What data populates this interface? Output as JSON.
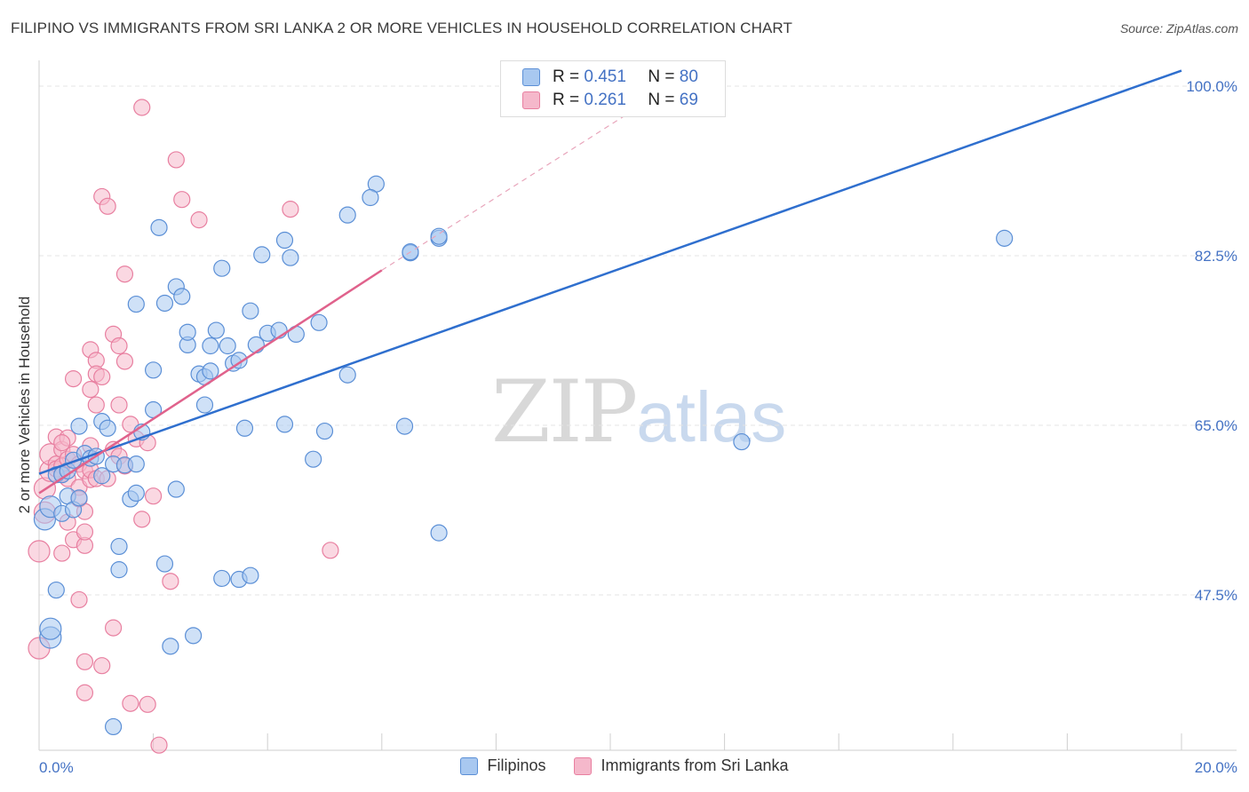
{
  "title": "FILIPINO VS IMMIGRANTS FROM SRI LANKA 2 OR MORE VEHICLES IN HOUSEHOLD CORRELATION CHART",
  "source": "Source: ZipAtlas.com",
  "watermark": {
    "zip": "ZIP",
    "atlas": "atlas"
  },
  "legend": {
    "rows": [
      {
        "r_label": "R =",
        "r_value": "0.451",
        "n_label": "N =",
        "n_value": "80",
        "color": "#a8c8f0"
      },
      {
        "r_label": "R =",
        "r_value": "0.261",
        "n_label": "N =",
        "n_value": "69",
        "color": "#f5b8cb"
      }
    ]
  },
  "colors": {
    "blue_fill": "#a8c8f0",
    "blue_stroke": "#5b8fd6",
    "blue_line": "#2f6fce",
    "pink_fill": "#f5b8cb",
    "pink_stroke": "#e87fa0",
    "pink_line": "#e0628c",
    "axis_text": "#4472c4",
    "grid": "#e4e4e4"
  },
  "chart_data": {
    "type": "scatter",
    "title": "FILIPINO VS IMMIGRANTS FROM SRI LANKA 2 OR MORE VEHICLES IN HOUSEHOLD CORRELATION CHART",
    "xlabel": "",
    "ylabel": "2 or more Vehicles in Household",
    "xlim": [
      0,
      20
    ],
    "ylim": [
      32.5,
      102
    ],
    "x_tick_labels": [
      "0.0%",
      "20.0%"
    ],
    "y_ticks": [
      47.5,
      65.0,
      82.5,
      100.0
    ],
    "y_tick_labels": [
      "47.5%",
      "65.0%",
      "82.5%",
      "100.0%"
    ],
    "series": [
      {
        "name": "Filipinos",
        "color": "#a8c8f0",
        "trend": {
          "x0": 0,
          "y0": 60.0,
          "x1": 20,
          "y1": 101.6
        },
        "points": [
          [
            0.1,
            55.3
          ],
          [
            0.2,
            56.6
          ],
          [
            0.2,
            43.1
          ],
          [
            0.3,
            59.9
          ],
          [
            0.3,
            48.0
          ],
          [
            0.4,
            55.9
          ],
          [
            0.4,
            59.9
          ],
          [
            0.5,
            57.7
          ],
          [
            0.5,
            60.3
          ],
          [
            0.6,
            56.3
          ],
          [
            0.6,
            61.4
          ],
          [
            0.7,
            57.5
          ],
          [
            0.7,
            64.9
          ],
          [
            0.8,
            62.1
          ],
          [
            0.9,
            61.6
          ],
          [
            1.0,
            61.8
          ],
          [
            1.1,
            59.8
          ],
          [
            1.1,
            65.4
          ],
          [
            1.2,
            64.7
          ],
          [
            1.3,
            61.0
          ],
          [
            1.4,
            50.1
          ],
          [
            1.4,
            52.5
          ],
          [
            1.5,
            60.9
          ],
          [
            1.6,
            57.4
          ],
          [
            1.7,
            58.0
          ],
          [
            1.7,
            77.5
          ],
          [
            1.7,
            61.0
          ],
          [
            1.8,
            64.3
          ],
          [
            2.0,
            70.7
          ],
          [
            2.0,
            66.6
          ],
          [
            2.1,
            85.4
          ],
          [
            2.2,
            50.7
          ],
          [
            2.2,
            77.6
          ],
          [
            2.3,
            42.2
          ],
          [
            2.4,
            58.4
          ],
          [
            2.4,
            79.3
          ],
          [
            2.5,
            78.3
          ],
          [
            2.6,
            73.3
          ],
          [
            2.6,
            74.6
          ],
          [
            2.7,
            43.3
          ],
          [
            2.8,
            70.3
          ],
          [
            2.9,
            70.0
          ],
          [
            2.9,
            67.1
          ],
          [
            3.0,
            70.6
          ],
          [
            3.0,
            73.2
          ],
          [
            3.1,
            74.8
          ],
          [
            3.2,
            49.2
          ],
          [
            3.2,
            81.2
          ],
          [
            3.3,
            73.2
          ],
          [
            3.4,
            71.4
          ],
          [
            3.5,
            71.7
          ],
          [
            3.5,
            49.1
          ],
          [
            3.6,
            64.7
          ],
          [
            3.7,
            49.5
          ],
          [
            3.7,
            76.8
          ],
          [
            3.8,
            73.3
          ],
          [
            3.9,
            82.6
          ],
          [
            4.0,
            74.5
          ],
          [
            4.2,
            74.8
          ],
          [
            4.3,
            65.1
          ],
          [
            4.3,
            84.1
          ],
          [
            4.4,
            82.3
          ],
          [
            4.5,
            74.4
          ],
          [
            4.8,
            61.5
          ],
          [
            4.9,
            75.6
          ],
          [
            5.0,
            64.4
          ],
          [
            5.4,
            86.7
          ],
          [
            5.4,
            70.2
          ],
          [
            5.9,
            89.9
          ],
          [
            6.4,
            64.9
          ],
          [
            6.5,
            82.8
          ],
          [
            6.5,
            82.9
          ],
          [
            7.0,
            53.9
          ],
          [
            7.0,
            84.3
          ],
          [
            7.0,
            84.5
          ],
          [
            5.8,
            88.5
          ],
          [
            12.3,
            63.3
          ],
          [
            16.9,
            84.3
          ],
          [
            1.3,
            33.9
          ],
          [
            0.2,
            44.0
          ]
        ]
      },
      {
        "name": "Immigrants from Sri Lanka",
        "color": "#f5b8cb",
        "trend": {
          "x0": 0,
          "y0": 58.0,
          "x1": 6.0,
          "y1": 81.0,
          "dashed_to_x": 11.2,
          "dashed_to_y": 100.5
        },
        "points": [
          [
            0.0,
            52.0
          ],
          [
            0.0,
            42.0
          ],
          [
            0.1,
            56.0
          ],
          [
            0.1,
            58.5
          ],
          [
            0.2,
            60.3
          ],
          [
            0.2,
            62.0
          ],
          [
            0.3,
            61.0
          ],
          [
            0.3,
            63.8
          ],
          [
            0.3,
            60.5
          ],
          [
            0.4,
            62.5
          ],
          [
            0.4,
            60.8
          ],
          [
            0.4,
            51.8
          ],
          [
            0.4,
            60.0
          ],
          [
            0.5,
            55.0
          ],
          [
            0.5,
            61.5
          ],
          [
            0.5,
            59.5
          ],
          [
            0.6,
            69.8
          ],
          [
            0.6,
            62.0
          ],
          [
            0.6,
            53.2
          ],
          [
            0.7,
            58.6
          ],
          [
            0.7,
            61.0
          ],
          [
            0.7,
            47.0
          ],
          [
            0.7,
            57.4
          ],
          [
            0.8,
            52.6
          ],
          [
            0.8,
            54.0
          ],
          [
            0.8,
            56.1
          ],
          [
            0.8,
            60.3
          ],
          [
            0.8,
            40.6
          ],
          [
            0.8,
            37.4
          ],
          [
            0.9,
            59.4
          ],
          [
            0.9,
            72.8
          ],
          [
            0.9,
            68.7
          ],
          [
            0.9,
            60.4
          ],
          [
            0.9,
            62.9
          ],
          [
            1.0,
            67.1
          ],
          [
            1.0,
            59.5
          ],
          [
            1.0,
            71.7
          ],
          [
            1.0,
            70.3
          ],
          [
            1.1,
            88.6
          ],
          [
            1.1,
            40.2
          ],
          [
            1.1,
            70.0
          ],
          [
            1.2,
            87.6
          ],
          [
            1.3,
            62.5
          ],
          [
            1.3,
            44.1
          ],
          [
            1.3,
            74.4
          ],
          [
            1.4,
            61.8
          ],
          [
            1.4,
            67.1
          ],
          [
            1.4,
            73.2
          ],
          [
            1.5,
            80.6
          ],
          [
            1.5,
            71.6
          ],
          [
            1.6,
            65.1
          ],
          [
            1.6,
            36.3
          ],
          [
            1.7,
            63.6
          ],
          [
            1.8,
            55.3
          ],
          [
            1.8,
            97.8
          ],
          [
            1.9,
            36.2
          ],
          [
            1.9,
            63.2
          ],
          [
            2.0,
            57.7
          ],
          [
            2.1,
            32.0
          ],
          [
            2.3,
            48.9
          ],
          [
            2.4,
            92.4
          ],
          [
            2.5,
            88.3
          ],
          [
            2.8,
            86.2
          ],
          [
            0.5,
            63.7
          ],
          [
            4.4,
            87.3
          ],
          [
            5.1,
            52.1
          ],
          [
            1.2,
            59.5
          ],
          [
            0.4,
            63.2
          ],
          [
            1.5,
            60.8
          ]
        ]
      }
    ]
  },
  "bottom_legend": [
    {
      "label": "Filipinos",
      "color": "#a8c8f0"
    },
    {
      "label": "Immigrants from Sri Lanka",
      "color": "#f5b8cb"
    }
  ]
}
